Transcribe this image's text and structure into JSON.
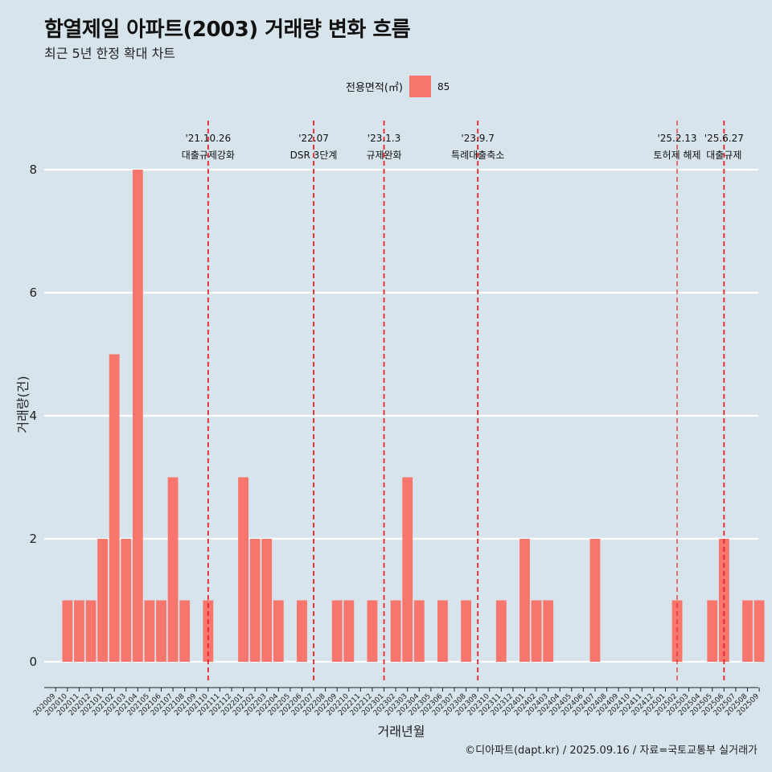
{
  "title": "함열제일 아파트(2003) 거래량 변화 흐름",
  "subtitle": "최근 5년 한정 확대 차트",
  "caption": "©디아파트(dapt.kr) / 2025.09.16 / 자료=국토교통부 실거래가",
  "legend": {
    "title": "전용면적(㎡)",
    "items": [
      {
        "label": "85",
        "color": "#f8766d"
      }
    ]
  },
  "chart_data": {
    "type": "bar",
    "title": "함열제일 아파트(2003) 거래량 변화 흐름",
    "xlabel": "거래년월",
    "ylabel": "거래량(건)",
    "ylim": [
      0,
      8
    ],
    "yticks": [
      0,
      2,
      4,
      6,
      8
    ],
    "grid": true,
    "legend_position": "top",
    "categories": [
      "202009",
      "202010",
      "202011",
      "202012",
      "202101",
      "202102",
      "202103",
      "202104",
      "202105",
      "202106",
      "202107",
      "202108",
      "202109",
      "202110",
      "202111",
      "202112",
      "202201",
      "202202",
      "202203",
      "202204",
      "202205",
      "202206",
      "202207",
      "202208",
      "202209",
      "202210",
      "202211",
      "202212",
      "202301",
      "202302",
      "202303",
      "202304",
      "202305",
      "202306",
      "202307",
      "202308",
      "202309",
      "202310",
      "202311",
      "202312",
      "202401",
      "202402",
      "202403",
      "202404",
      "202405",
      "202406",
      "202407",
      "202408",
      "202409",
      "202410",
      "202411",
      "202412",
      "202501",
      "202502",
      "202503",
      "202504",
      "202505",
      "202506",
      "202507",
      "202508",
      "202509"
    ],
    "series": [
      {
        "name": "85",
        "color": "#f8766d",
        "values": [
          0,
          1,
          1,
          1,
          2,
          5,
          2,
          8,
          1,
          1,
          3,
          1,
          0,
          1,
          0,
          0,
          3,
          2,
          2,
          1,
          0,
          1,
          0,
          0,
          1,
          1,
          0,
          1,
          0,
          1,
          3,
          1,
          0,
          1,
          0,
          1,
          0,
          0,
          1,
          0,
          2,
          1,
          1,
          0,
          0,
          0,
          2,
          0,
          0,
          0,
          0,
          0,
          0,
          1,
          0,
          0,
          1,
          2,
          0,
          1,
          1
        ]
      }
    ],
    "events": [
      {
        "date": "'21.10.26",
        "label": "대출규제강화",
        "month": "202110"
      },
      {
        "date": "'22.07",
        "label": "DSR 3단계",
        "month": "202207"
      },
      {
        "date": "'23.1.3",
        "label": "규제완화",
        "month": "202301"
      },
      {
        "date": "'23.9.7",
        "label": "특례대출축소",
        "month": "202309"
      },
      {
        "date": "'25.2.13",
        "label": "토허제 해제",
        "month": "202502"
      },
      {
        "date": "'25.6.27",
        "label": "대출규제",
        "month": "202506"
      }
    ]
  }
}
